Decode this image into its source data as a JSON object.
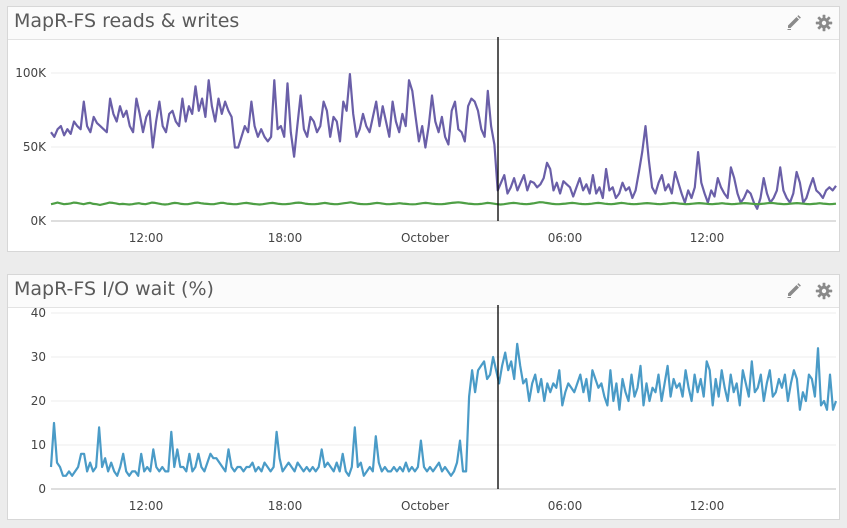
{
  "panels": [
    {
      "title": "MapR-FS reads & writes",
      "tools": [
        "pencil-icon",
        "gear-icon"
      ],
      "chart_data": {
        "type": "line",
        "yticks": [
          "0K",
          "50K",
          "100K"
        ],
        "ylim": [
          0,
          115000
        ],
        "xticks": [
          "12:00",
          "18:00",
          "October",
          "06:00",
          "12:00"
        ],
        "marker_label": "",
        "series": [
          {
            "color": "#6a5fa8",
            "values": [
              58000,
              55000,
              60000,
              62000,
              56000,
              60000,
              57000,
              65000,
              62000,
              60000,
              78000,
              62000,
              58000,
              68000,
              64000,
              62000,
              60000,
              58000,
              80000,
              70000,
              65000,
              75000,
              68000,
              72000,
              62000,
              58000,
              80000,
              70000,
              58000,
              68000,
              72000,
              48000,
              65000,
              78000,
              62000,
              58000,
              70000,
              72000,
              65000,
              62000,
              80000,
              65000,
              75000,
              70000,
              88000,
              72000,
              80000,
              68000,
              92000,
              75000,
              65000,
              80000,
              70000,
              78000,
              72000,
              68000,
              48000,
              48000,
              55000,
              62000,
              58000,
              78000,
              62000,
              55000,
              60000,
              55000,
              52000,
              55000,
              92000,
              60000,
              62000,
              55000,
              90000,
              58000,
              42000,
              62000,
              82000,
              60000,
              55000,
              68000,
              65000,
              58000,
              62000,
              78000,
              72000,
              55000,
              68000,
              65000,
              52000,
              78000,
              72000,
              96000,
              70000,
              55000,
              60000,
              70000,
              62000,
              58000,
              68000,
              78000,
              62000,
              75000,
              65000,
              55000,
              78000,
              65000,
              58000,
              70000,
              62000,
              92000,
              85000,
              68000,
              52000,
              62000,
              48000,
              62000,
              82000,
              65000,
              58000,
              68000,
              55000,
              50000,
              72000,
              78000,
              60000,
              58000,
              52000,
              75000,
              80000,
              78000,
              72000,
              60000,
              55000,
              85000,
              62000,
              50000,
              20000,
              25000,
              30000,
              18000,
              22000,
              28000,
              20000,
              25000,
              30000,
              20000,
              26000,
              25000,
              22000,
              24000,
              28000,
              38000,
              34000,
              20000,
              25000,
              18000,
              26000,
              24000,
              22000,
              16000,
              22000,
              28000,
              20000,
              24000,
              18000,
              30000,
              18000,
              22000,
              15000,
              34000,
              20000,
              22000,
              15000,
              18000,
              25000,
              20000,
              22000,
              15000,
              20000,
              32000,
              45000,
              62000,
              40000,
              22000,
              18000,
              25000,
              30000,
              20000,
              24000,
              18000,
              32000,
              25000,
              18000,
              12000,
              20000,
              15000,
              22000,
              45000,
              25000,
              18000,
              12000,
              20000,
              16000,
              28000,
              22000,
              18000,
              15000,
              35000,
              28000,
              18000,
              12000,
              15000,
              20000,
              18000,
              12000,
              8000,
              15000,
              28000,
              18000,
              12000,
              15000,
              20000,
              35000,
              20000,
              15000,
              12000,
              18000,
              32000,
              25000,
              12000,
              15000,
              22000,
              28000,
              20000,
              18000,
              15000,
              20000,
              22000,
              20000,
              23000
            ]
          },
          {
            "color": "#4e9f45",
            "values": [
              11000,
              11500,
              12000,
              11500,
              11000,
              11200,
              11500,
              12000,
              11800,
              11400,
              11000,
              11500,
              11800,
              11200,
              11000,
              10500,
              11000,
              11500,
              12000,
              11800,
              11500,
              11000,
              11200,
              11000,
              10800,
              11000,
              11400,
              11600,
              11200,
              11000,
              11500,
              12000,
              11800,
              11400,
              11000,
              10800,
              11000,
              11500,
              11800,
              11600,
              11200,
              11000,
              11000,
              11400,
              11800,
              12000,
              11600,
              11400,
              11200,
              11000,
              11000,
              11400,
              11800,
              11800,
              11400,
              11200,
              11000,
              11000,
              11300,
              11600,
              11800,
              11500,
              11200,
              11000,
              10800,
              11000,
              11300,
              11600,
              11800,
              11500,
              11200,
              11000,
              11000,
              11200,
              11500,
              11800,
              12000,
              11800,
              11400,
              11100,
              11000,
              11000,
              11200,
              11500,
              11800,
              11500,
              11200,
              11000,
              11000,
              11300,
              11600,
              11900,
              12200,
              11800,
              11400,
              11100,
              11000,
              11000,
              11200,
              11500,
              11800,
              11600,
              11300,
              11000,
              11000,
              11200,
              11400,
              11600,
              11400,
              11200,
              11000,
              10900,
              11000,
              11300,
              11600,
              11800,
              11600,
              11300,
              11100,
              11000,
              11000,
              11200,
              11500,
              11800,
              12000,
              12200,
              12000,
              11700,
              11400,
              11200,
              11000,
              11000,
              11200,
              11500,
              11800,
              11600,
              11300,
              11000,
              10800,
              11000,
              11300,
              11600,
              11800,
              11600,
              11300,
              11100,
              11000,
              11200,
              11500,
              11900,
              12300,
              12200,
              11800,
              11500,
              11200,
              11000,
              11000,
              11200,
              11400,
              11600,
              11800,
              11600,
              11300,
              11100,
              11000,
              11100,
              11300,
              11600,
              11800,
              11600,
              11300,
              11100,
              11000,
              11200,
              11500,
              11800,
              11600,
              11300,
              11100,
              11000,
              11100,
              11300,
              11500,
              11700,
              11500,
              11300,
              11100,
              11000,
              11200,
              11400,
              11600,
              11800,
              11600,
              11400,
              11200,
              11000,
              11100,
              11300,
              11500,
              11700,
              11500,
              11300,
              11100,
              11000,
              11200,
              11400,
              11600,
              11400,
              11200,
              11000,
              11100,
              11300,
              11500,
              11700,
              11500,
              11300,
              11100,
              11000,
              11200,
              11400,
              11600,
              11800,
              11600,
              11400,
              11200,
              11000,
              11100,
              11300,
              11500,
              11700,
              11500,
              11300,
              11100,
              11000,
              11200,
              11400,
              11600,
              11400,
              11200,
              11000,
              11100,
              11300
            ]
          }
        ]
      }
    },
    {
      "title": "MapR-FS I/O wait (%)",
      "tools": [
        "pencil-icon",
        "gear-icon"
      ],
      "chart_data": {
        "type": "line",
        "yticks": [
          "0",
          "10",
          "20",
          "30",
          "40"
        ],
        "ylim": [
          0,
          40
        ],
        "xticks": [
          "12:00",
          "18:00",
          "October",
          "06:00",
          "12:00"
        ],
        "marker_label": "",
        "series": [
          {
            "color": "#4a9bc7",
            "values": [
              5,
              15,
              6,
              5,
              3,
              3,
              4,
              3,
              4,
              5,
              8,
              8,
              4,
              6,
              4,
              5,
              14,
              5,
              7,
              4,
              6,
              4,
              3,
              5,
              8,
              4,
              3,
              4,
              4,
              3,
              8,
              4,
              5,
              4,
              9,
              5,
              4,
              5,
              4,
              4,
              13,
              5,
              9,
              5,
              5,
              4,
              8,
              4,
              5,
              8,
              5,
              4,
              6,
              8,
              7,
              7,
              6,
              5,
              4,
              9,
              5,
              4,
              5,
              5,
              4,
              5,
              5,
              6,
              4,
              5,
              4,
              6,
              5,
              4,
              5,
              13,
              7,
              4,
              5,
              6,
              5,
              4,
              6,
              5,
              4,
              5,
              4,
              5,
              4,
              5,
              9,
              5,
              6,
              5,
              4,
              6,
              4,
              8,
              4,
              3,
              5,
              14,
              5,
              6,
              3,
              4,
              5,
              4,
              12,
              6,
              4,
              5,
              4,
              4,
              5,
              4,
              5,
              4,
              6,
              4,
              5,
              4,
              5,
              11,
              5,
              4,
              5,
              4,
              5,
              6,
              4,
              5,
              4,
              3,
              4,
              6,
              11,
              4,
              4,
              21,
              27,
              22,
              27,
              28,
              29,
              25,
              26,
              30,
              27,
              24,
              28,
              31,
              27,
              29,
              25,
              33,
              28,
              24,
              25,
              20,
              24,
              26,
              22,
              25,
              20,
              24,
              22,
              24,
              23,
              27,
              19,
              22,
              24,
              23,
              22,
              24,
              26,
              22,
              25,
              20,
              27,
              25,
              23,
              24,
              21,
              19,
              27,
              20,
              24,
              18,
              25,
              22,
              20,
              26,
              21,
              23,
              28,
              19,
              24,
              20,
              23,
              22,
              26,
              20,
              24,
              28,
              21,
              25,
              23,
              24,
              21,
              27,
              23,
              20,
              26,
              22,
              25,
              21,
              29,
              27,
              19,
              25,
              21,
              27,
              23,
              20,
              26,
              22,
              24,
              19,
              27,
              24,
              21,
              29,
              22,
              23,
              26,
              20,
              24,
              27,
              21,
              22,
              25,
              23,
              26,
              20,
              24,
              27,
              25,
              18,
              22,
              20,
              26,
              25,
              21,
              32,
              19,
              20,
              18,
              26,
              18,
              20
            ]
          }
        ]
      }
    }
  ]
}
